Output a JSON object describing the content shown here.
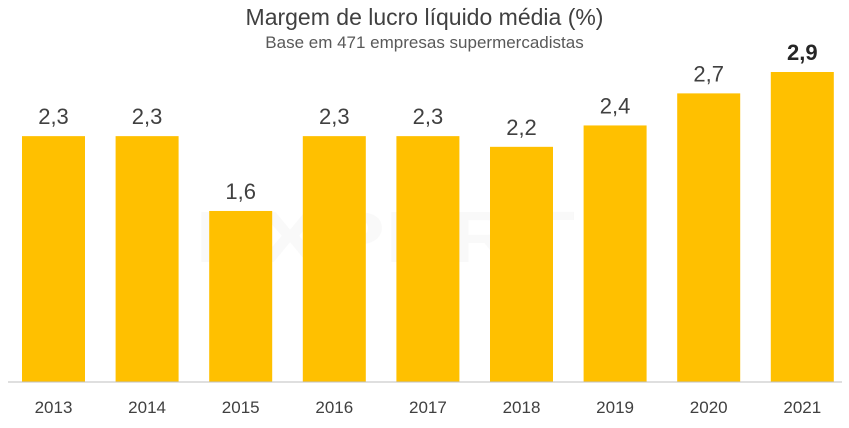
{
  "chart_data": {
    "type": "bar",
    "title": "Margem de lucro líquido média (%)",
    "subtitle": "Base em 471 empresas supermercadistas",
    "categories": [
      "2013",
      "2014",
      "2015",
      "2016",
      "2017",
      "2018",
      "2019",
      "2020",
      "2021"
    ],
    "values": [
      2.3,
      2.3,
      1.6,
      2.3,
      2.3,
      2.2,
      2.4,
      2.7,
      2.9
    ],
    "value_labels": [
      "2,3",
      "2,3",
      "1,6",
      "2,3",
      "2,3",
      "2,2",
      "2,4",
      "2,7",
      "2,9"
    ],
    "highlight_index": 8,
    "xlabel": "",
    "ylabel": "",
    "ylim": [
      0,
      2.9
    ],
    "grid": false,
    "bar_color": "#FFC000",
    "axis_color": "#BFBFBF"
  },
  "watermark": {
    "main": "EXPERT",
    "badge": "XP"
  }
}
